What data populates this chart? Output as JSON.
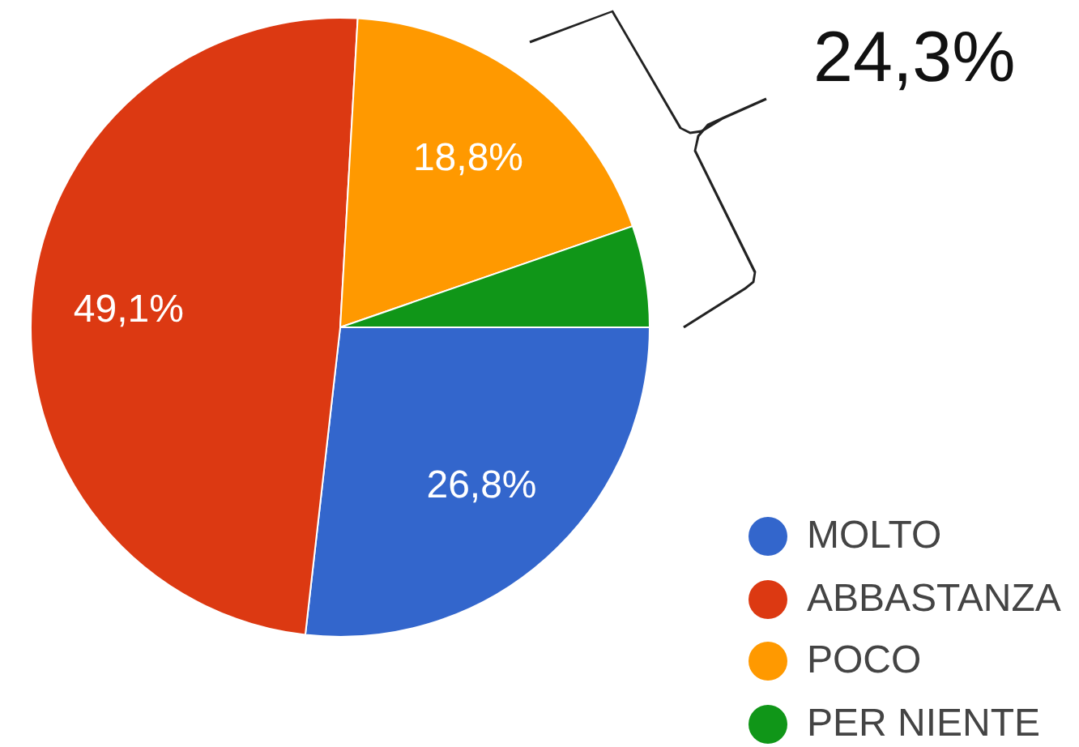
{
  "chart_data": {
    "type": "pie",
    "categories": [
      "MOLTO",
      "ABBASTANZA",
      "POCO",
      "PER NIENTE"
    ],
    "values": [
      26.8,
      49.1,
      18.8,
      5.3
    ],
    "colors": [
      "#3366cc",
      "#dc3912",
      "#ff9900",
      "#109618"
    ],
    "value_labels": [
      "26,8%",
      "49,1%",
      "18,8%",
      null
    ],
    "annotations": [
      "24,3%"
    ],
    "legend": "bottom right"
  }
}
